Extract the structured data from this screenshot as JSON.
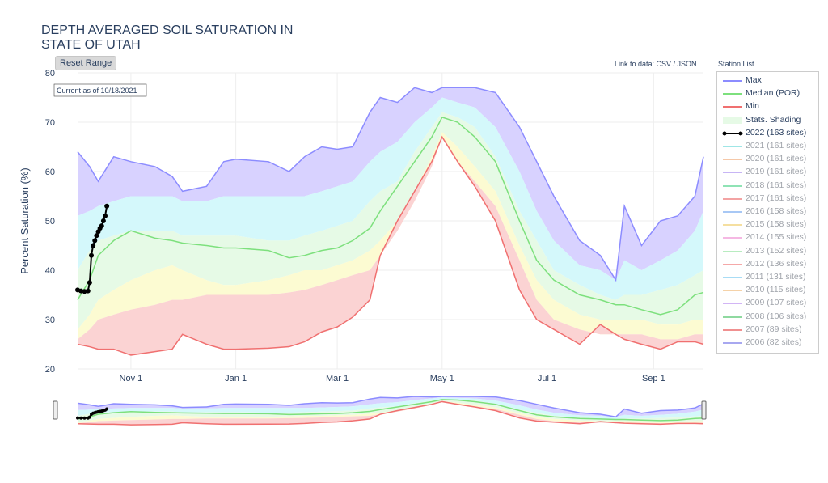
{
  "title": "DEPTH AVERAGED SOIL SATURATION IN STATE OF UTAH",
  "reset_label": "Reset Range",
  "link_text": "Link to data: CSV / JSON",
  "station_list_label": "Station List",
  "annotation": "Current as of 10/18/2021",
  "colors": {
    "max": "#8c8cff",
    "median": "#7de07d",
    "min": "#f07070",
    "current": "#000000",
    "band_purple": "#d8d2ff",
    "band_cyan": "#d4f8fb",
    "band_green": "#e6fae6",
    "band_yellow": "#fcfbd2",
    "band_red": "#fbd3d3"
  },
  "chart_data": {
    "type": "area",
    "xlabel": "",
    "ylabel": "Percent Saturation (%)",
    "ylim": [
      20,
      80
    ],
    "yticks": [
      20,
      30,
      40,
      50,
      60,
      70,
      80
    ],
    "xlim": [
      "2021-10-01",
      "2022-09-30"
    ],
    "xticks": [
      {
        "date": "2021-11-01",
        "label": "Nov 1"
      },
      {
        "date": "2022-01-01",
        "label": "Jan 1"
      },
      {
        "date": "2022-03-01",
        "label": "Mar 1"
      },
      {
        "date": "2022-05-01",
        "label": "May 1"
      },
      {
        "date": "2022-07-01",
        "label": "Jul 1"
      },
      {
        "date": "2022-09-01",
        "label": "Sep 1"
      }
    ],
    "grid": true,
    "legend_position": "right",
    "range_slider": true,
    "stats": [
      {
        "date": "2021-10-01",
        "max": 64,
        "p90": 51,
        "p70": 40,
        "median": 34,
        "p30": 28,
        "p10": 26,
        "min": 25
      },
      {
        "date": "2021-10-08",
        "max": 61,
        "p90": 52,
        "p70": 44,
        "median": 38,
        "p30": 31,
        "p10": 28,
        "min": 24.5
      },
      {
        "date": "2021-10-13",
        "max": 58,
        "p90": 53,
        "p70": 46,
        "median": 43,
        "p30": 34,
        "p10": 30,
        "min": 24
      },
      {
        "date": "2021-10-22",
        "max": 63,
        "p90": 54,
        "p70": 47,
        "median": 46,
        "p30": 36,
        "p10": 31,
        "min": 24
      },
      {
        "date": "2021-11-01",
        "max": 62,
        "p90": 55,
        "p70": 48,
        "median": 48,
        "p30": 38,
        "p10": 32,
        "min": 22.8
      },
      {
        "date": "2021-11-15",
        "max": 61,
        "p90": 55,
        "p70": 48,
        "median": 46.5,
        "p30": 40,
        "p10": 33,
        "min": 23.5
      },
      {
        "date": "2021-11-25",
        "max": 59,
        "p90": 55,
        "p70": 48,
        "median": 46,
        "p30": 41,
        "p10": 34,
        "min": 24
      },
      {
        "date": "2021-12-01",
        "max": 56,
        "p90": 54,
        "p70": 47,
        "median": 45.5,
        "p30": 40,
        "p10": 34,
        "min": 27
      },
      {
        "date": "2021-12-15",
        "max": 57,
        "p90": 54,
        "p70": 47,
        "median": 45,
        "p30": 38,
        "p10": 35,
        "min": 25
      },
      {
        "date": "2021-12-25",
        "max": 62,
        "p90": 55,
        "p70": 47,
        "median": 44.5,
        "p30": 37,
        "p10": 35,
        "min": 24
      },
      {
        "date": "2022-01-01",
        "max": 62.5,
        "p90": 55,
        "p70": 47,
        "median": 44.5,
        "p30": 37,
        "p10": 35,
        "min": 24
      },
      {
        "date": "2022-01-20",
        "max": 62,
        "p90": 55,
        "p70": 46,
        "median": 44,
        "p30": 38,
        "p10": 35,
        "min": 24.2
      },
      {
        "date": "2022-02-01",
        "max": 60,
        "p90": 55,
        "p70": 46,
        "median": 42.5,
        "p30": 39,
        "p10": 35.5,
        "min": 24.5
      },
      {
        "date": "2022-02-10",
        "max": 63,
        "p90": 55,
        "p70": 47,
        "median": 43,
        "p30": 40,
        "p10": 36,
        "min": 25.5
      },
      {
        "date": "2022-02-20",
        "max": 65,
        "p90": 56,
        "p70": 48,
        "median": 44,
        "p30": 40,
        "p10": 37,
        "min": 27.5
      },
      {
        "date": "2022-03-01",
        "max": 64.5,
        "p90": 57,
        "p70": 49,
        "median": 44.5,
        "p30": 41,
        "p10": 38,
        "min": 28.5
      },
      {
        "date": "2022-03-10",
        "max": 65,
        "p90": 58,
        "p70": 50,
        "median": 46,
        "p30": 42,
        "p10": 39,
        "min": 30.5
      },
      {
        "date": "2022-03-20",
        "max": 72,
        "p90": 62,
        "p70": 54,
        "median": 48.5,
        "p30": 44,
        "p10": 40,
        "min": 34
      },
      {
        "date": "2022-03-26",
        "max": 75,
        "p90": 64,
        "p70": 56,
        "median": 52,
        "p30": 46,
        "p10": 43,
        "min": 43
      },
      {
        "date": "2022-04-05",
        "max": 74,
        "p90": 66,
        "p70": 58,
        "median": 57,
        "p30": 50,
        "p10": 48,
        "min": 50
      },
      {
        "date": "2022-04-15",
        "max": 77,
        "p90": 70,
        "p70": 64,
        "median": 62,
        "p30": 56,
        "p10": 54,
        "min": 56
      },
      {
        "date": "2022-04-25",
        "max": 76,
        "p90": 73,
        "p70": 69,
        "median": 67,
        "p30": 63,
        "p10": 61,
        "min": 62
      },
      {
        "date": "2022-05-01",
        "max": 77,
        "p90": 75,
        "p70": 72,
        "median": 71,
        "p30": 68,
        "p10": 67,
        "min": 67
      },
      {
        "date": "2022-05-10",
        "max": 77,
        "p90": 74,
        "p70": 71,
        "median": 70,
        "p30": 65,
        "p10": 62,
        "min": 62
      },
      {
        "date": "2022-05-20",
        "max": 77,
        "p90": 73,
        "p70": 69,
        "median": 67,
        "p30": 61,
        "p10": 58,
        "min": 57
      },
      {
        "date": "2022-06-01",
        "max": 76,
        "p90": 69,
        "p70": 63,
        "median": 62,
        "p30": 56,
        "p10": 53,
        "min": 50
      },
      {
        "date": "2022-06-15",
        "max": 69,
        "p90": 60,
        "p70": 52,
        "median": 50,
        "p30": 45,
        "p10": 42,
        "min": 36
      },
      {
        "date": "2022-06-25",
        "max": 62,
        "p90": 52,
        "p70": 46,
        "median": 42,
        "p30": 38,
        "p10": 34,
        "min": 30
      },
      {
        "date": "2022-07-05",
        "max": 55,
        "p90": 46,
        "p70": 40,
        "median": 38,
        "p30": 34,
        "p10": 30,
        "min": 28
      },
      {
        "date": "2022-07-20",
        "max": 46,
        "p90": 41,
        "p70": 37,
        "median": 35,
        "p30": 31,
        "p10": 28,
        "min": 25
      },
      {
        "date": "2022-08-01",
        "max": 43,
        "p90": 40,
        "p70": 35,
        "median": 34,
        "p30": 30,
        "p10": 27,
        "min": 29
      },
      {
        "date": "2022-08-10",
        "max": 38,
        "p90": 38,
        "p70": 34,
        "median": 33,
        "p30": 30,
        "p10": 27,
        "min": 27
      },
      {
        "date": "2022-08-15",
        "max": 53,
        "p90": 42,
        "p70": 35,
        "median": 33,
        "p30": 30,
        "p10": 27,
        "min": 26
      },
      {
        "date": "2022-08-25",
        "max": 45,
        "p90": 40,
        "p70": 35,
        "median": 32,
        "p30": 30,
        "p10": 27,
        "min": 25
      },
      {
        "date": "2022-09-05",
        "max": 50,
        "p90": 42,
        "p70": 36,
        "median": 31,
        "p30": 29,
        "p10": 26,
        "min": 24
      },
      {
        "date": "2022-09-15",
        "max": 51,
        "p90": 44,
        "p70": 37,
        "median": 32,
        "p30": 29,
        "p10": 26,
        "min": 25.5
      },
      {
        "date": "2022-09-25",
        "max": 55,
        "p90": 48,
        "p70": 39,
        "median": 35,
        "p30": 30,
        "p10": 27,
        "min": 25.5
      },
      {
        "date": "2022-09-30",
        "max": 63,
        "p90": 52,
        "p70": 40,
        "median": 35.5,
        "p30": 30,
        "p10": 27,
        "min": 25
      }
    ],
    "current": {
      "name": "2022 (163 sites)",
      "dates": [
        "2021-10-01",
        "2021-10-03",
        "2021-10-05",
        "2021-10-07",
        "2021-10-08",
        "2021-10-09",
        "2021-10-10",
        "2021-10-11",
        "2021-10-12",
        "2021-10-13",
        "2021-10-14",
        "2021-10-15",
        "2021-10-16",
        "2021-10-17",
        "2021-10-18"
      ],
      "values": [
        36,
        35.8,
        35.7,
        35.8,
        37.5,
        43,
        45,
        46,
        47,
        47.8,
        48.5,
        49,
        50,
        51,
        53
      ]
    }
  },
  "legend": [
    {
      "label": "Max",
      "kind": "line",
      "color": "#8c8cff",
      "active": true
    },
    {
      "label": "Median (POR)",
      "kind": "line",
      "color": "#7de07d",
      "active": true
    },
    {
      "label": "Min",
      "kind": "line",
      "color": "#f07070",
      "active": true
    },
    {
      "label": "Stats. Shading",
      "kind": "fill",
      "color": "#e6fae6",
      "active": true
    },
    {
      "label": "2022 (163 sites)",
      "kind": "marker",
      "color": "#000000",
      "active": true
    },
    {
      "label": "2021 (161 sites)",
      "kind": "line",
      "color": "#9fe6e6",
      "active": false
    },
    {
      "label": "2020 (161 sites)",
      "kind": "line",
      "color": "#f5c8a8",
      "active": false
    },
    {
      "label": "2019 (161 sites)",
      "kind": "line",
      "color": "#c7b5f5",
      "active": false
    },
    {
      "label": "2018 (161 sites)",
      "kind": "line",
      "color": "#8fe3b5",
      "active": false
    },
    {
      "label": "2017 (161 sites)",
      "kind": "line",
      "color": "#f3a3a3",
      "active": false
    },
    {
      "label": "2016 (158 sites)",
      "kind": "line",
      "color": "#a8c8f5",
      "active": false
    },
    {
      "label": "2015 (158 sites)",
      "kind": "line",
      "color": "#f5dfa0",
      "active": false
    },
    {
      "label": "2014 (155 sites)",
      "kind": "line",
      "color": "#f5b8e3",
      "active": false
    },
    {
      "label": "2013 (152 sites)",
      "kind": "line",
      "color": "#b8ecc0",
      "active": false
    },
    {
      "label": "2012 (136 sites)",
      "kind": "line",
      "color": "#f5a8a8",
      "active": false
    },
    {
      "label": "2011 (131 sites)",
      "kind": "line",
      "color": "#a8dcf5",
      "active": false
    },
    {
      "label": "2010 (115 sites)",
      "kind": "line",
      "color": "#f5d2a8",
      "active": false
    },
    {
      "label": "2009 (107 sites)",
      "kind": "line",
      "color": "#d2b5f5",
      "active": false
    },
    {
      "label": "2008 (106 sites)",
      "kind": "line",
      "color": "#8fd9a0",
      "active": false
    },
    {
      "label": "2007 (89 sites)",
      "kind": "line",
      "color": "#f09090",
      "active": false
    },
    {
      "label": "2006 (82 sites)",
      "kind": "line",
      "color": "#a8a8f0",
      "active": false
    }
  ]
}
